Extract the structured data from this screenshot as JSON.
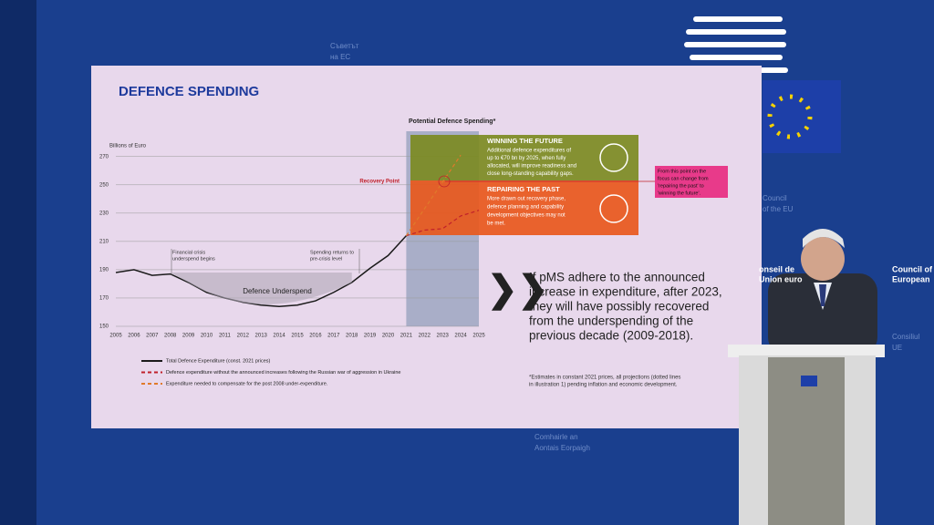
{
  "chart_data": {
    "type": "line",
    "title": "DEFENCE SPENDING",
    "y_label": "Billions of Euro",
    "x": [
      2005,
      2006,
      2007,
      2008,
      2009,
      2010,
      2011,
      2012,
      2013,
      2014,
      2015,
      2016,
      2017,
      2018,
      2019,
      2020,
      2021,
      2022,
      2023,
      2024,
      2025
    ],
    "xlim": [
      2005,
      2025
    ],
    "xticks": [
      2005,
      2006,
      2007,
      2008,
      2009,
      2010,
      2011,
      2012,
      2013,
      2014,
      2015,
      2016,
      2017,
      2018,
      2019,
      2020,
      2021,
      2022,
      2023,
      2024,
      2025
    ],
    "ylim": [
      150,
      275
    ],
    "yticks": [
      150,
      170,
      190,
      210,
      230,
      250,
      270
    ],
    "grid": true,
    "shaded_xrange": [
      2021,
      2025
    ],
    "shaded_label": "Potential Defence Spending*",
    "series": [
      {
        "name": "Total Defence Expenditure (const. 2021 prices)",
        "color": "#1a1a1a",
        "dash": "none",
        "values": [
          188,
          190,
          186,
          187,
          181,
          174,
          170,
          167,
          165,
          164,
          165,
          168,
          174,
          181,
          191,
          200,
          214,
          null,
          null,
          null,
          null
        ]
      },
      {
        "name": "Defence expenditure without the announced increases following the Russian war of aggression in Ukraine",
        "color": "#c0202a",
        "dash": "4 3",
        "values": [
          null,
          null,
          null,
          null,
          null,
          null,
          null,
          null,
          null,
          null,
          null,
          null,
          null,
          null,
          null,
          null,
          214,
          218,
          219,
          228,
          232
        ]
      },
      {
        "name": "Expenditure needed to compensate for the post 2008 under-expenditure.",
        "color": "#e07a2a",
        "dash": "4 3",
        "values": [
          null,
          null,
          null,
          null,
          null,
          null,
          null,
          null,
          null,
          null,
          null,
          null,
          null,
          null,
          null,
          null,
          214,
          233,
          252,
          271,
          null
        ]
      }
    ],
    "annotations": {
      "financial_crisis": [
        "Financial crisis",
        "underspend begins"
      ],
      "spending_returns": [
        "Spending returns to",
        "pre-crisis level"
      ],
      "underspend": "Defence Underspend",
      "recovery_point": "Recovery Point"
    },
    "boxes": {
      "future": {
        "title": "WINNING THE FUTURE",
        "lines": [
          "Additional defence expenditures of",
          "up to €70 bn by 2025, when fully",
          "allocated, will improve readiness and",
          "close long-standing capability gaps."
        ]
      },
      "past": {
        "title": "REPAIRING THE PAST",
        "lines": [
          "More drawn out recovery phase,",
          "defence planning and capability",
          "development objectives may not",
          "be met."
        ]
      },
      "focus": [
        "From this point on the",
        "focus can change from",
        "'repairing the past' to",
        "'winning the future'."
      ]
    },
    "message": [
      "If pMS adhere to the announced",
      "increase in expenditure, after 2023,",
      "they will have possibly recovered",
      "from the underspending of the",
      "previous decade (2009-2018)."
    ],
    "footnote": [
      "*Estimates in constant 2021 prices, all projections (dotted lines",
      "in illustration 1) pending inflation and economic development."
    ]
  },
  "backdrop": {
    "top_left": [
      "Съветът",
      "на ЕС"
    ],
    "mid_right": [
      "Council",
      "of the EU"
    ],
    "lower_right_a": [
      "onseil de",
      "Union euro"
    ],
    "lower_right_b": [
      "Council of",
      "European"
    ],
    "lower_right_c": [
      "Consiliul",
      "UE"
    ],
    "bottom": [
      "Comhairle an",
      "Aontais Eorpaigh"
    ]
  }
}
